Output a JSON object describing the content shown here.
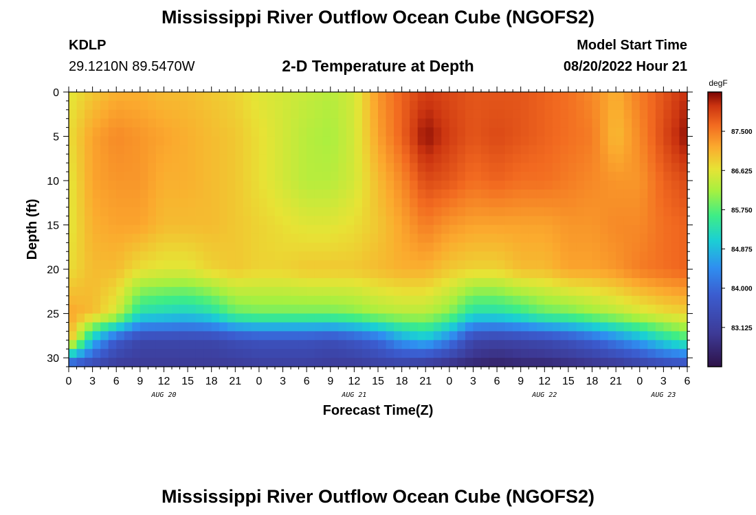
{
  "header": {
    "title": "Mississippi River Outflow Ocean Cube (NGOFS2)",
    "station": "KDLP",
    "coords": "29.1210N  89.5470W",
    "subtitle": "2-D Temperature at Depth",
    "start_label": "Model Start Time",
    "start_time": "08/20/2022 Hour 21"
  },
  "footer": {
    "title": "Mississippi River Outflow Ocean Cube (NGOFS2)"
  },
  "chart_data": {
    "type": "heatmap",
    "title": "2-D Temperature at Depth",
    "xlabel": "Forecast Time(Z)",
    "ylabel": "Depth (ft)",
    "x_hours_range": [
      0,
      78
    ],
    "ylim": [
      0,
      31
    ],
    "y_ticks": [
      0,
      5,
      10,
      15,
      20,
      25,
      30
    ],
    "x_ticks": [
      "0",
      "3",
      "6",
      "9",
      "12",
      "15",
      "18",
      "21",
      "0",
      "3",
      "6",
      "9",
      "12",
      "15",
      "18",
      "21",
      "0",
      "3",
      "6",
      "9",
      "12",
      "15",
      "18",
      "21",
      "0",
      "3",
      "6"
    ],
    "x_tick_hours": [
      0,
      3,
      6,
      9,
      12,
      15,
      18,
      21,
      24,
      27,
      30,
      33,
      36,
      39,
      42,
      45,
      48,
      51,
      54,
      57,
      60,
      63,
      66,
      69,
      72,
      75,
      78
    ],
    "date_labels": [
      {
        "label": "AUG 20",
        "hour": 12
      },
      {
        "label": "AUG 21",
        "hour": 36
      },
      {
        "label": "AUG 22",
        "hour": 60
      },
      {
        "label": "AUG 23",
        "hour": 75
      }
    ],
    "colorbar": {
      "unit": "degF",
      "min": 82.25,
      "max": 88.375,
      "ticks": [
        "87.500",
        "86.625",
        "85.750",
        "84.875",
        "84.000",
        "83.125"
      ],
      "tick_values": [
        87.5,
        86.625,
        85.75,
        84.875,
        84.0,
        83.125
      ]
    },
    "profiles": [
      {
        "hour": 0,
        "temps": [
          86.6,
          86.7,
          86.6,
          86.6,
          86.7,
          87.2,
          87.1,
          83.6
        ]
      },
      {
        "hour": 3,
        "temps": [
          86.9,
          87.2,
          87.2,
          87.1,
          87.0,
          87.0,
          84.9,
          83.3
        ]
      },
      {
        "hour": 6,
        "temps": [
          87.1,
          87.4,
          87.3,
          87.2,
          87.0,
          86.5,
          83.8,
          83.0
        ]
      },
      {
        "hour": 9,
        "temps": [
          87.1,
          87.3,
          87.3,
          87.2,
          86.7,
          85.3,
          83.3,
          83.0
        ]
      },
      {
        "hour": 12,
        "temps": [
          87.0,
          87.2,
          87.1,
          87.0,
          86.6,
          85.2,
          83.3,
          83.0
        ]
      },
      {
        "hour": 15,
        "temps": [
          87.0,
          87.1,
          87.1,
          87.0,
          86.6,
          85.1,
          83.3,
          83.0
        ]
      },
      {
        "hour": 18,
        "temps": [
          86.9,
          87.0,
          87.0,
          87.0,
          86.8,
          85.3,
          83.3,
          83.0
        ]
      },
      {
        "hour": 21,
        "temps": [
          86.8,
          86.9,
          86.9,
          86.9,
          86.9,
          85.8,
          83.5,
          83.0
        ]
      },
      {
        "hour": 24,
        "temps": [
          86.6,
          86.7,
          86.7,
          86.8,
          86.8,
          85.9,
          83.6,
          83.1
        ]
      },
      {
        "hour": 27,
        "temps": [
          86.5,
          86.5,
          86.5,
          86.7,
          86.8,
          85.9,
          83.6,
          83.1
        ]
      },
      {
        "hour": 30,
        "temps": [
          86.4,
          86.3,
          86.3,
          86.6,
          86.9,
          85.9,
          83.6,
          83.1
        ]
      },
      {
        "hour": 33,
        "temps": [
          86.3,
          86.2,
          86.3,
          86.6,
          86.9,
          85.9,
          83.5,
          83.0
        ]
      },
      {
        "hour": 36,
        "temps": [
          86.5,
          86.5,
          86.5,
          86.7,
          86.9,
          86.0,
          83.7,
          83.0
        ]
      },
      {
        "hour": 39,
        "temps": [
          87.3,
          87.2,
          87.0,
          86.9,
          87.0,
          86.2,
          84.0,
          83.1
        ]
      },
      {
        "hour": 42,
        "temps": [
          87.7,
          87.7,
          87.4,
          87.2,
          87.1,
          86.3,
          84.6,
          83.1
        ]
      },
      {
        "hour": 45,
        "temps": [
          88.0,
          88.3,
          87.9,
          87.5,
          87.1,
          86.3,
          84.9,
          82.9
        ]
      },
      {
        "hour": 48,
        "temps": [
          87.9,
          88.0,
          87.8,
          87.3,
          86.9,
          86.0,
          84.3,
          82.7
        ]
      },
      {
        "hour": 51,
        "temps": [
          87.8,
          87.8,
          87.6,
          87.2,
          86.8,
          85.3,
          83.3,
          82.6
        ]
      },
      {
        "hour": 54,
        "temps": [
          87.8,
          87.9,
          87.7,
          87.2,
          86.8,
          85.3,
          83.2,
          82.5
        ]
      },
      {
        "hour": 57,
        "temps": [
          87.8,
          87.8,
          87.6,
          87.2,
          87.0,
          85.5,
          83.3,
          82.6
        ]
      },
      {
        "hour": 60,
        "temps": [
          87.7,
          87.7,
          87.6,
          87.2,
          87.0,
          85.8,
          83.4,
          82.6
        ]
      },
      {
        "hour": 63,
        "temps": [
          87.6,
          87.6,
          87.5,
          87.3,
          87.2,
          85.9,
          83.6,
          82.7
        ]
      },
      {
        "hour": 66,
        "temps": [
          87.4,
          87.5,
          87.4,
          87.3,
          87.2,
          86.1,
          83.9,
          82.8
        ]
      },
      {
        "hour": 69,
        "temps": [
          87.1,
          87.0,
          87.3,
          87.4,
          87.3,
          86.3,
          84.3,
          82.9
        ]
      },
      {
        "hour": 72,
        "temps": [
          87.5,
          87.4,
          87.3,
          87.4,
          87.5,
          86.5,
          84.7,
          83.1
        ]
      },
      {
        "hour": 75,
        "temps": [
          87.8,
          87.9,
          87.7,
          87.6,
          87.6,
          86.7,
          85.2,
          83.3
        ]
      },
      {
        "hour": 78,
        "temps": [
          88.1,
          88.3,
          87.9,
          87.7,
          87.7,
          86.8,
          85.6,
          83.4
        ]
      }
    ],
    "profile_depths": [
      0,
      5,
      10,
      15,
      20,
      25,
      28,
      31
    ]
  }
}
